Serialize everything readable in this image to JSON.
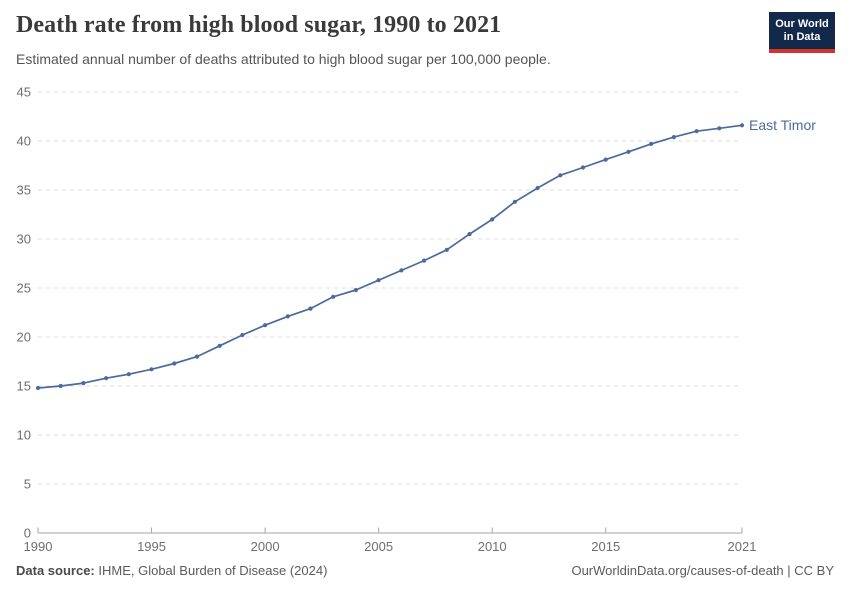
{
  "header": {
    "title": "Death rate from high blood sugar, 1990 to 2021",
    "subtitle": "Estimated annual number of deaths attributed to high blood sugar per 100,000 people."
  },
  "logo": {
    "line1": "Our World",
    "line2": "in Data",
    "bg_color": "#13294b",
    "accent_color": "#d0342c"
  },
  "chart_data": {
    "type": "line",
    "title": "Death rate from high blood sugar, 1990 to 2021",
    "subtitle": "Estimated annual number of deaths attributed to high blood sugar per 100,000 people.",
    "xlabel": "",
    "ylabel": "",
    "x": [
      1990,
      1991,
      1992,
      1993,
      1994,
      1995,
      1996,
      1997,
      1998,
      1999,
      2000,
      2001,
      2002,
      2003,
      2004,
      2005,
      2006,
      2007,
      2008,
      2009,
      2010,
      2011,
      2012,
      2013,
      2014,
      2015,
      2016,
      2017,
      2018,
      2019,
      2020,
      2021
    ],
    "series": [
      {
        "name": "East Timor",
        "color": "#4c6a9c",
        "values": [
          14.8,
          15.0,
          15.3,
          15.8,
          16.2,
          16.7,
          17.3,
          18.0,
          19.1,
          20.2,
          21.2,
          22.1,
          22.9,
          24.1,
          24.8,
          25.8,
          26.8,
          27.8,
          28.9,
          30.5,
          32.0,
          33.8,
          35.2,
          36.5,
          37.3,
          38.1,
          38.9,
          39.7,
          40.4,
          41.0,
          41.3,
          41.6
        ]
      }
    ],
    "end_label": "East Timor",
    "x_ticks": [
      1990,
      1995,
      2000,
      2005,
      2010,
      2015,
      2021
    ],
    "y_ticks": [
      0,
      5,
      10,
      15,
      20,
      25,
      30,
      35,
      40,
      45
    ],
    "xlim": [
      1990,
      2021
    ],
    "ylim": [
      0,
      45
    ],
    "grid": "horizontal-dashed",
    "grid_color": "#dcdcdc",
    "axis_color": "#a5a5a5",
    "legend_position": "end-of-line"
  },
  "footer": {
    "datasource_label": "Data source:",
    "datasource_value": "IHME, Global Burden of Disease (2024)",
    "credit": "OurWorldinData.org/causes-of-death | CC BY"
  }
}
